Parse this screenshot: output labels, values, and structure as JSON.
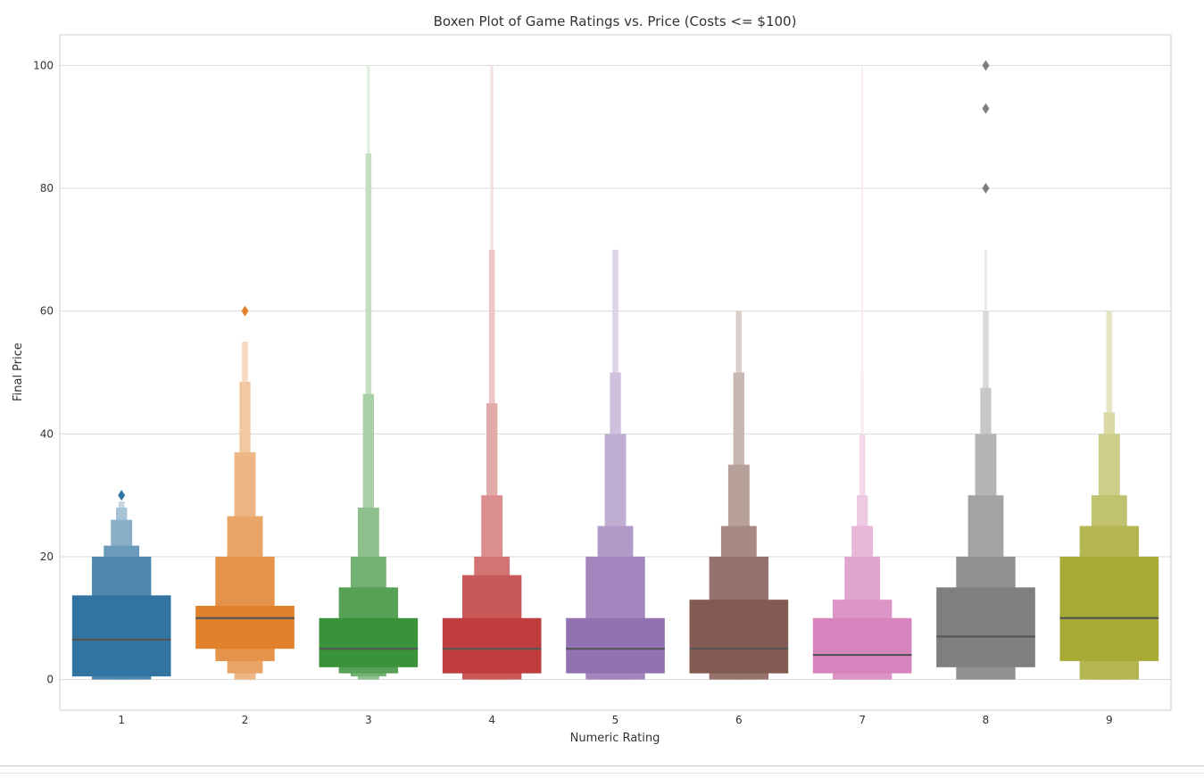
{
  "chart_data": {
    "type": "boxen",
    "title": "Boxen Plot of Game Ratings vs. Price (Costs <= $100)",
    "xlabel": "Numeric Rating",
    "ylabel": "Final Price",
    "ylim": [
      -5,
      105
    ],
    "yticks": [
      0,
      20,
      40,
      60,
      80,
      100
    ],
    "grid": true,
    "categories": [
      "1",
      "2",
      "3",
      "4",
      "5",
      "6",
      "7",
      "8",
      "9"
    ],
    "series": [
      {
        "category": "1",
        "color": "#3274a1",
        "median": 6.5,
        "levels": [
          [
            0.5,
            13.7
          ],
          [
            0.0,
            20.0
          ],
          [
            0.0,
            21.8
          ],
          [
            0.0,
            26.0
          ],
          [
            0.0,
            28.0
          ],
          [
            0.0,
            29.0
          ]
        ],
        "outliers": [
          30
        ]
      },
      {
        "category": "2",
        "color": "#e1812c",
        "median": 10.0,
        "levels": [
          [
            5.0,
            12.0
          ],
          [
            3.0,
            20.0
          ],
          [
            1.0,
            26.6
          ],
          [
            0.0,
            37.0
          ],
          [
            0.0,
            48.5
          ],
          [
            0.0,
            55.0
          ]
        ],
        "outliers": [
          60
        ]
      },
      {
        "category": "3",
        "color": "#3a923a",
        "median": 5.0,
        "levels": [
          [
            2.0,
            10.0
          ],
          [
            1.0,
            15.0
          ],
          [
            0.5,
            20.0
          ],
          [
            0.0,
            28.0
          ],
          [
            0.0,
            46.5
          ],
          [
            0.0,
            85.7
          ],
          [
            0.0,
            100.0
          ]
        ],
        "outliers": []
      },
      {
        "category": "4",
        "color": "#c03d3e",
        "median": 5.0,
        "levels": [
          [
            1.0,
            10.0
          ],
          [
            0.0,
            17.0
          ],
          [
            0.0,
            20.0
          ],
          [
            0.0,
            30.0
          ],
          [
            0.0,
            45.0
          ],
          [
            0.0,
            70.0
          ],
          [
            0.0,
            100.0
          ]
        ],
        "outliers": []
      },
      {
        "category": "5",
        "color": "#9372b2",
        "median": 5.0,
        "levels": [
          [
            1.0,
            10.0
          ],
          [
            0.0,
            20.0
          ],
          [
            0.0,
            25.0
          ],
          [
            0.0,
            40.0
          ],
          [
            0.0,
            50.0
          ],
          [
            0.0,
            70.0
          ]
        ],
        "outliers": []
      },
      {
        "category": "6",
        "color": "#845b53",
        "median": 5.0,
        "levels": [
          [
            1.0,
            13.0
          ],
          [
            0.0,
            20.0
          ],
          [
            0.0,
            25.0
          ],
          [
            0.0,
            35.0
          ],
          [
            0.0,
            50.0
          ],
          [
            0.0,
            60.0
          ]
        ],
        "outliers": []
      },
      {
        "category": "7",
        "color": "#d684bd",
        "median": 4.0,
        "levels": [
          [
            1.0,
            10.0
          ],
          [
            0.0,
            13.0
          ],
          [
            0.0,
            20.0
          ],
          [
            0.0,
            25.0
          ],
          [
            0.0,
            30.0
          ],
          [
            0.0,
            40.0
          ],
          [
            0.0,
            50.0
          ],
          [
            0.0,
            80.0
          ],
          [
            0.0,
            100.0
          ]
        ],
        "outliers": []
      },
      {
        "category": "8",
        "color": "#7f7f7f",
        "median": 7.0,
        "levels": [
          [
            2.0,
            15.0
          ],
          [
            0.0,
            20.0
          ],
          [
            0.0,
            30.0
          ],
          [
            0.0,
            40.0
          ],
          [
            0.0,
            47.5
          ],
          [
            0.0,
            60.0
          ],
          [
            0.0,
            70.0
          ]
        ],
        "outliers": [
          80,
          93,
          100
        ]
      },
      {
        "category": "9",
        "color": "#a9aa35",
        "median": 10.0,
        "levels": [
          [
            3.0,
            20.0
          ],
          [
            0.0,
            25.0
          ],
          [
            0.0,
            30.0
          ],
          [
            0.0,
            40.0
          ],
          [
            0.0,
            43.5
          ],
          [
            0.0,
            60.0
          ]
        ],
        "outliers": []
      }
    ]
  }
}
